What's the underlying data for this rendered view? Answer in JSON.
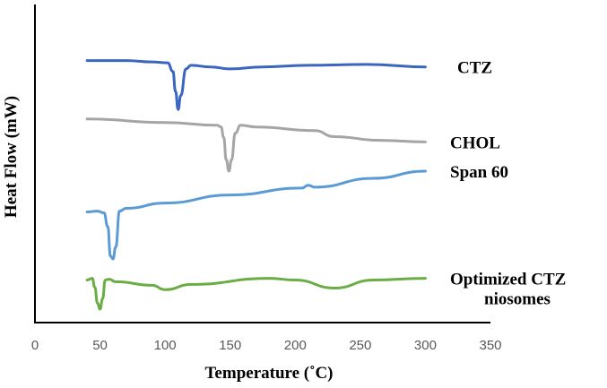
{
  "chart_data": {
    "type": "line",
    "title": "",
    "xlabel": "Temperature (˚C)",
    "ylabel": "Heat Flow (mW)",
    "xlim": [
      0,
      350
    ],
    "xticks": [
      0,
      50,
      100,
      150,
      200,
      250,
      300,
      350
    ],
    "grid": false,
    "legend": "inline labels at right end of each curve",
    "yaxis_note": "relative offset units (0 = bottom, 100 = top of plot)",
    "series": [
      {
        "name": "CTZ",
        "color": "#3a66bf",
        "label_lines": [
          "CTZ"
        ],
        "points": [
          [
            40,
            91.1
          ],
          [
            70,
            91.1
          ],
          [
            90,
            90.6
          ],
          [
            102,
            90.3
          ],
          [
            106,
            87.2
          ],
          [
            108,
            80.0
          ],
          [
            110,
            73.5
          ],
          [
            112,
            78.5
          ],
          [
            116,
            88.1
          ],
          [
            120,
            89.4
          ],
          [
            135,
            88.8
          ],
          [
            150,
            88.1
          ],
          [
            175,
            88.8
          ],
          [
            210,
            89.4
          ],
          [
            255,
            89.7
          ],
          [
            300,
            88.8
          ]
        ]
      },
      {
        "name": "CHOL",
        "color": "#a5a5a5",
        "label_lines": [
          "CHOL"
        ],
        "points": [
          [
            40,
            70.1
          ],
          [
            100,
            68.8
          ],
          [
            140,
            67.8
          ],
          [
            143,
            67.2
          ],
          [
            145,
            63.4
          ],
          [
            147,
            55.4
          ],
          [
            149,
            51.3
          ],
          [
            151,
            55.4
          ],
          [
            154,
            65.0
          ],
          [
            158,
            67.8
          ],
          [
            170,
            67.2
          ],
          [
            215,
            65.9
          ],
          [
            230,
            63.7
          ],
          [
            265,
            62.4
          ],
          [
            300,
            61.8
          ]
        ]
      },
      {
        "name": "Span 60",
        "color": "#5b9bd5",
        "label_lines": [
          "Span 60"
        ],
        "points": [
          [
            40,
            36.6
          ],
          [
            48,
            36.9
          ],
          [
            53,
            36.3
          ],
          [
            56,
            31.2
          ],
          [
            58,
            20.7
          ],
          [
            60,
            19.7
          ],
          [
            62,
            23.9
          ],
          [
            65,
            36.9
          ],
          [
            70,
            37.9
          ],
          [
            100,
            39.8
          ],
          [
            150,
            42.7
          ],
          [
            205,
            45.2
          ],
          [
            210,
            46.2
          ],
          [
            215,
            45.5
          ],
          [
            260,
            48.7
          ],
          [
            300,
            51.3
          ]
        ]
      },
      {
        "name": "Optimized CTZ niosomes",
        "color": "#6aad45",
        "label_lines": [
          "Optimized CTZ",
          "niosomes"
        ],
        "points": [
          [
            40,
            12.1
          ],
          [
            44,
            12.7
          ],
          [
            46,
            9.5
          ],
          [
            48,
            3.8
          ],
          [
            50,
            1.6
          ],
          [
            52,
            5.4
          ],
          [
            54,
            12.1
          ],
          [
            57,
            12.4
          ],
          [
            62,
            11.5
          ],
          [
            90,
            10.2
          ],
          [
            100,
            8.6
          ],
          [
            120,
            10.5
          ],
          [
            180,
            12.7
          ],
          [
            200,
            12.1
          ],
          [
            230,
            9.2
          ],
          [
            260,
            12.1
          ],
          [
            300,
            12.7
          ]
        ]
      }
    ]
  }
}
